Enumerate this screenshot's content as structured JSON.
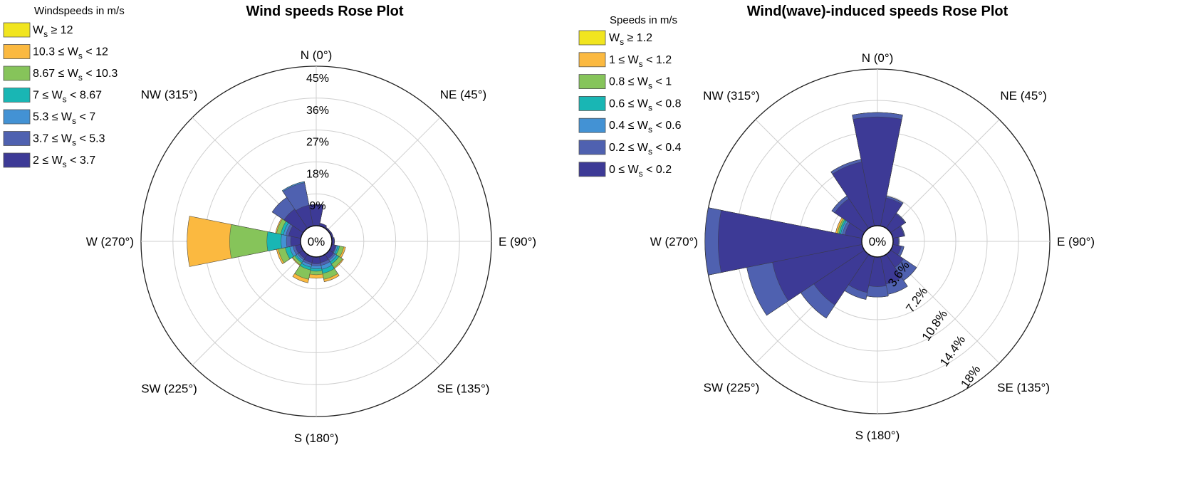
{
  "chart_data": [
    {
      "type": "rose",
      "title": "Wind speeds Rose Plot",
      "legend": {
        "title": "Windspeeds in m/s",
        "placement": "top-left",
        "entries": [
          {
            "pre": "",
            "mid": "W",
            "sub": "s",
            "post": " ≥ 12"
          },
          {
            "pre": "10.3 ≤ ",
            "mid": "W",
            "sub": "s",
            "post": " < 12"
          },
          {
            "pre": "8.67 ≤ ",
            "mid": "W",
            "sub": "s",
            "post": " < 10.3"
          },
          {
            "pre": "7 ≤ ",
            "mid": "W",
            "sub": "s",
            "post": " < 8.67"
          },
          {
            "pre": "5.3 ≤ ",
            "mid": "W",
            "sub": "s",
            "post": " < 7"
          },
          {
            "pre": "3.7 ≤ ",
            "mid": "W",
            "sub": "s",
            "post": " < 5.3"
          },
          {
            "pre": "2 ≤ ",
            "mid": "W",
            "sub": "s",
            "post": " < 3.7"
          }
        ]
      },
      "bin_colors": [
        "#3d3a96",
        "#4f61b0",
        "#4392d4",
        "#19b6b4",
        "#86c45a",
        "#fbb940",
        "#f1e51f"
      ],
      "direction_labels": [
        "N (0°)",
        "NE (45°)",
        "E (90°)",
        "SE (135°)",
        "S (180°)",
        "SW (225°)",
        "W (270°)",
        "NW (315°)"
      ],
      "center_label": "0%",
      "frequency_labels": [
        "9%",
        "18%",
        "27%",
        "36%",
        "45%"
      ],
      "frequency_label_style": "vertical",
      "radial_max": 45,
      "sector_width_deg": 22.5,
      "directions_deg": [
        0,
        22.5,
        45,
        67.5,
        90,
        112.5,
        135,
        157.5,
        180,
        202.5,
        225,
        247.5,
        270,
        292.5,
        315,
        337.5
      ],
      "cumulative_percent": [
        [
          6,
          0.8,
          0.4,
          0.5,
          0.7,
          1.2,
          1.5,
          1.7,
          1.9,
          1.7,
          1.4,
          1.6,
          2.8,
          3.5,
          6.5,
          6
        ],
        [
          6,
          0.8,
          0.4,
          0.5,
          0.7,
          1.4,
          2.0,
          2.5,
          2.5,
          2.3,
          1.9,
          2.3,
          4.0,
          4.3,
          10.5,
          12.5
        ],
        [
          6,
          0.8,
          0.4,
          0.5,
          0.7,
          1.8,
          2.6,
          3.6,
          3.3,
          3.0,
          2.4,
          3.2,
          5.5,
          5.0,
          10.5,
          12.8
        ],
        [
          6,
          0.8,
          0.4,
          0.5,
          0.7,
          2.3,
          3.3,
          4.8,
          4.0,
          3.8,
          2.9,
          4.5,
          9.5,
          5.8,
          10.5,
          12.8
        ],
        [
          6,
          0.8,
          0.4,
          0.5,
          0.7,
          3.5,
          4.5,
          6.5,
          5.0,
          6.5,
          3.6,
          6.5,
          20,
          7.0,
          10.5,
          12.8
        ],
        [
          6,
          0.8,
          0.4,
          0.5,
          0.7,
          4.0,
          4.8,
          7.2,
          6.0,
          7.5,
          3.8,
          7.0,
          32,
          7.3,
          10.5,
          12.8
        ],
        [
          6,
          0.8,
          0.4,
          0.5,
          0.7,
          4.0,
          4.8,
          7.2,
          6.0,
          7.5,
          3.8,
          7.0,
          32,
          7.3,
          10.5,
          12.8
        ]
      ]
    },
    {
      "type": "rose",
      "title": "Wind(wave)-induced speeds Rose Plot",
      "legend": {
        "title": "Speeds in m/s",
        "placement": "top-left",
        "entries": [
          {
            "pre": "",
            "mid": "W",
            "sub": "s",
            "post": " ≥ 1.2"
          },
          {
            "pre": "1 ≤ ",
            "mid": "W",
            "sub": "s",
            "post": " < 1.2"
          },
          {
            "pre": "0.8 ≤ ",
            "mid": "W",
            "sub": "s",
            "post": " < 1"
          },
          {
            "pre": "0.6 ≤ ",
            "mid": "W",
            "sub": "s",
            "post": " < 0.8"
          },
          {
            "pre": "0.4 ≤ ",
            "mid": "W",
            "sub": "s",
            "post": " < 0.6"
          },
          {
            "pre": "0.2 ≤ ",
            "mid": "W",
            "sub": "s",
            "post": " < 0.4"
          },
          {
            "pre": "0 ≤ ",
            "mid": "W",
            "sub": "s",
            "post": " < 0.2"
          }
        ]
      },
      "bin_colors": [
        "#3d3a96",
        "#4f61b0",
        "#4392d4",
        "#19b6b4",
        "#86c45a",
        "#fbb940",
        "#f1e51f"
      ],
      "direction_labels": [
        "N (0°)",
        "NE (45°)",
        "E (90°)",
        "SE (135°)",
        "S (180°)",
        "SW (225°)",
        "W (270°)",
        "NW (315°)"
      ],
      "center_label": "0%",
      "frequency_labels": [
        "3.6%",
        "7.2%",
        "10.8%",
        "14.4%",
        "18%"
      ],
      "frequency_label_style": "diagonal",
      "radial_max": 18,
      "sector_width_deg": 22.5,
      "directions_deg": [
        0,
        22.5,
        45,
        67.5,
        90,
        112.5,
        135,
        157.5,
        180,
        202.5,
        225,
        247.5,
        270,
        292.5,
        315,
        337.5
      ],
      "cumulative_percent": [
        [
          12.5,
          3.3,
          2.0,
          1.3,
          0.6,
          1.0,
          1.8,
          3.2,
          3.4,
          4.2,
          7.0,
          10.5,
          16.5,
          2.0,
          4.1,
          7.5
        ],
        [
          13.0,
          3.5,
          2.1,
          1.4,
          0.7,
          1.3,
          3.6,
          4.4,
          4.6,
          5.0,
          8.8,
          13.5,
          18.0,
          2.3,
          4.5,
          7.8
        ],
        [
          13.0,
          3.5,
          2.1,
          1.4,
          0.7,
          1.3,
          3.6,
          4.4,
          4.6,
          5.0,
          8.8,
          13.5,
          18.0,
          2.5,
          4.5,
          7.8
        ],
        [
          13.0,
          3.5,
          2.1,
          1.4,
          0.7,
          1.3,
          3.6,
          4.4,
          4.6,
          5.0,
          8.8,
          13.5,
          18.0,
          2.7,
          4.5,
          7.8
        ],
        [
          13.0,
          3.5,
          2.1,
          1.4,
          0.7,
          1.3,
          3.6,
          4.4,
          4.6,
          5.0,
          8.8,
          13.5,
          18.0,
          2.9,
          4.5,
          7.8
        ],
        [
          13.0,
          3.5,
          2.1,
          1.4,
          0.7,
          1.3,
          3.6,
          4.4,
          4.6,
          5.0,
          8.8,
          13.5,
          18.0,
          3.1,
          4.5,
          7.8
        ],
        [
          13.0,
          3.5,
          2.1,
          1.4,
          0.7,
          1.3,
          3.6,
          4.4,
          4.6,
          5.0,
          8.8,
          13.5,
          18.0,
          3.1,
          4.5,
          7.8
        ]
      ]
    }
  ]
}
